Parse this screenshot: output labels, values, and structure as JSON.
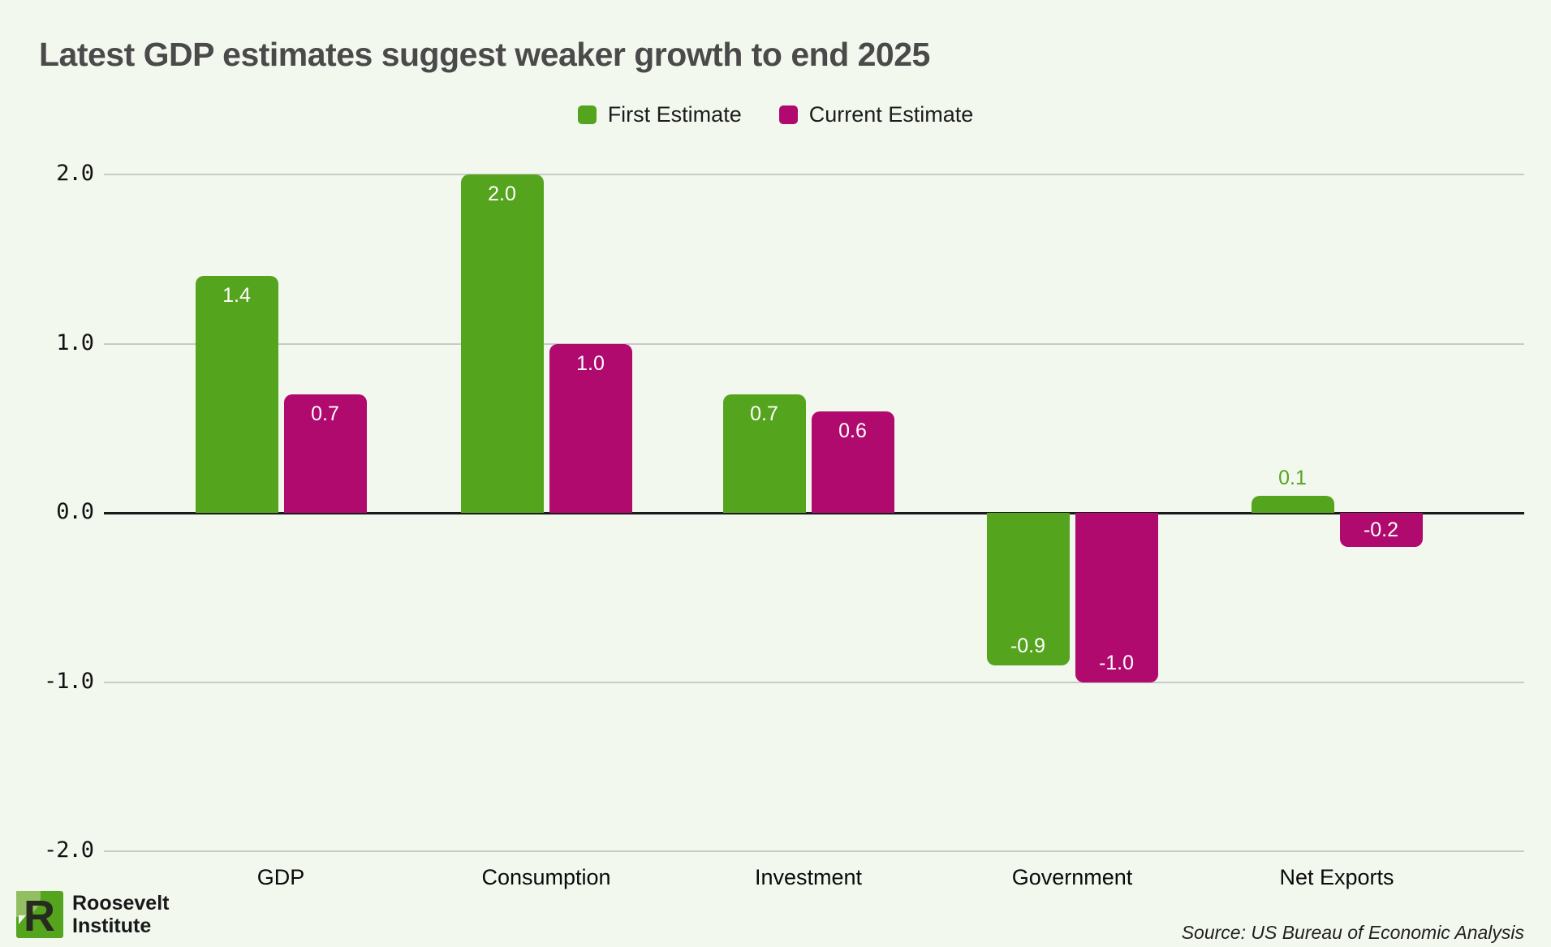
{
  "header": {
    "title": "Latest GDP estimates suggest weaker growth to end 2025"
  },
  "legend": {
    "items": [
      {
        "label": "First Estimate",
        "color": "#55a41e"
      },
      {
        "label": "Current Estimate",
        "color": "#b00a6e"
      }
    ]
  },
  "chart_data": {
    "type": "bar",
    "title": "Latest GDP estimates suggest weaker growth to end 2025",
    "categories": [
      "GDP",
      "Consumption",
      "Investment",
      "Government",
      "Net Exports"
    ],
    "series": [
      {
        "name": "First Estimate",
        "color": "#55a41e",
        "values": [
          1.4,
          2.0,
          0.7,
          -0.9,
          0.1
        ],
        "labels": [
          "1.4",
          "2.0",
          "0.7",
          "-0.9",
          "0.1"
        ]
      },
      {
        "name": "Current Estimate",
        "color": "#b00a6e",
        "values": [
          0.7,
          1.0,
          0.6,
          -1.0,
          -0.2
        ],
        "labels": [
          "0.7",
          "1.0",
          "0.6",
          "-1.0",
          "-0.2"
        ]
      }
    ],
    "xlabel": "",
    "ylabel": "",
    "ylim": [
      -2.0,
      2.0
    ],
    "yticks": [
      {
        "value": 2.0,
        "label": "2.0"
      },
      {
        "value": 1.0,
        "label": "1.0"
      },
      {
        "value": 0.0,
        "label": "0.0"
      },
      {
        "value": -1.0,
        "label": "-1.0"
      },
      {
        "value": -2.0,
        "label": "-2.0"
      }
    ],
    "grid": "horizontal",
    "legend_position": "top-center",
    "value_label_style": "white inside bar; series-color above bar when bar too short"
  },
  "footer": {
    "logo": {
      "mark": "R",
      "line1": "Roosevelt",
      "line2": "Institute"
    },
    "source": "Source: US Bureau of Economic Analysis"
  },
  "colors": {
    "background": "#f3f8ef",
    "gridline": "#c9c9c9",
    "zero_line": "#1b1b1b",
    "title": "#4a4a4a",
    "green": "#55a41e",
    "magenta": "#b00a6e"
  }
}
